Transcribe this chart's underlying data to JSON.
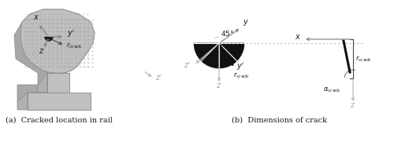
{
  "fig_width": 5.0,
  "fig_height": 1.81,
  "dpi": 100,
  "bg_color": "#ffffff",
  "caption_a": "(a)  Cracked location in rail",
  "caption_b": "(b)  Dimensions of crack",
  "gray_c8": "#c8c8c8",
  "gray_b8": "#b8b8b8",
  "gray_a8": "#a8a8a8",
  "gray_98": "#989898",
  "gray_d8": "#d8d8d8",
  "arrow_gray": "#aaaaaa",
  "dark_gray": "#333333",
  "black": "#111111",
  "text_color": "#1a1a1a"
}
